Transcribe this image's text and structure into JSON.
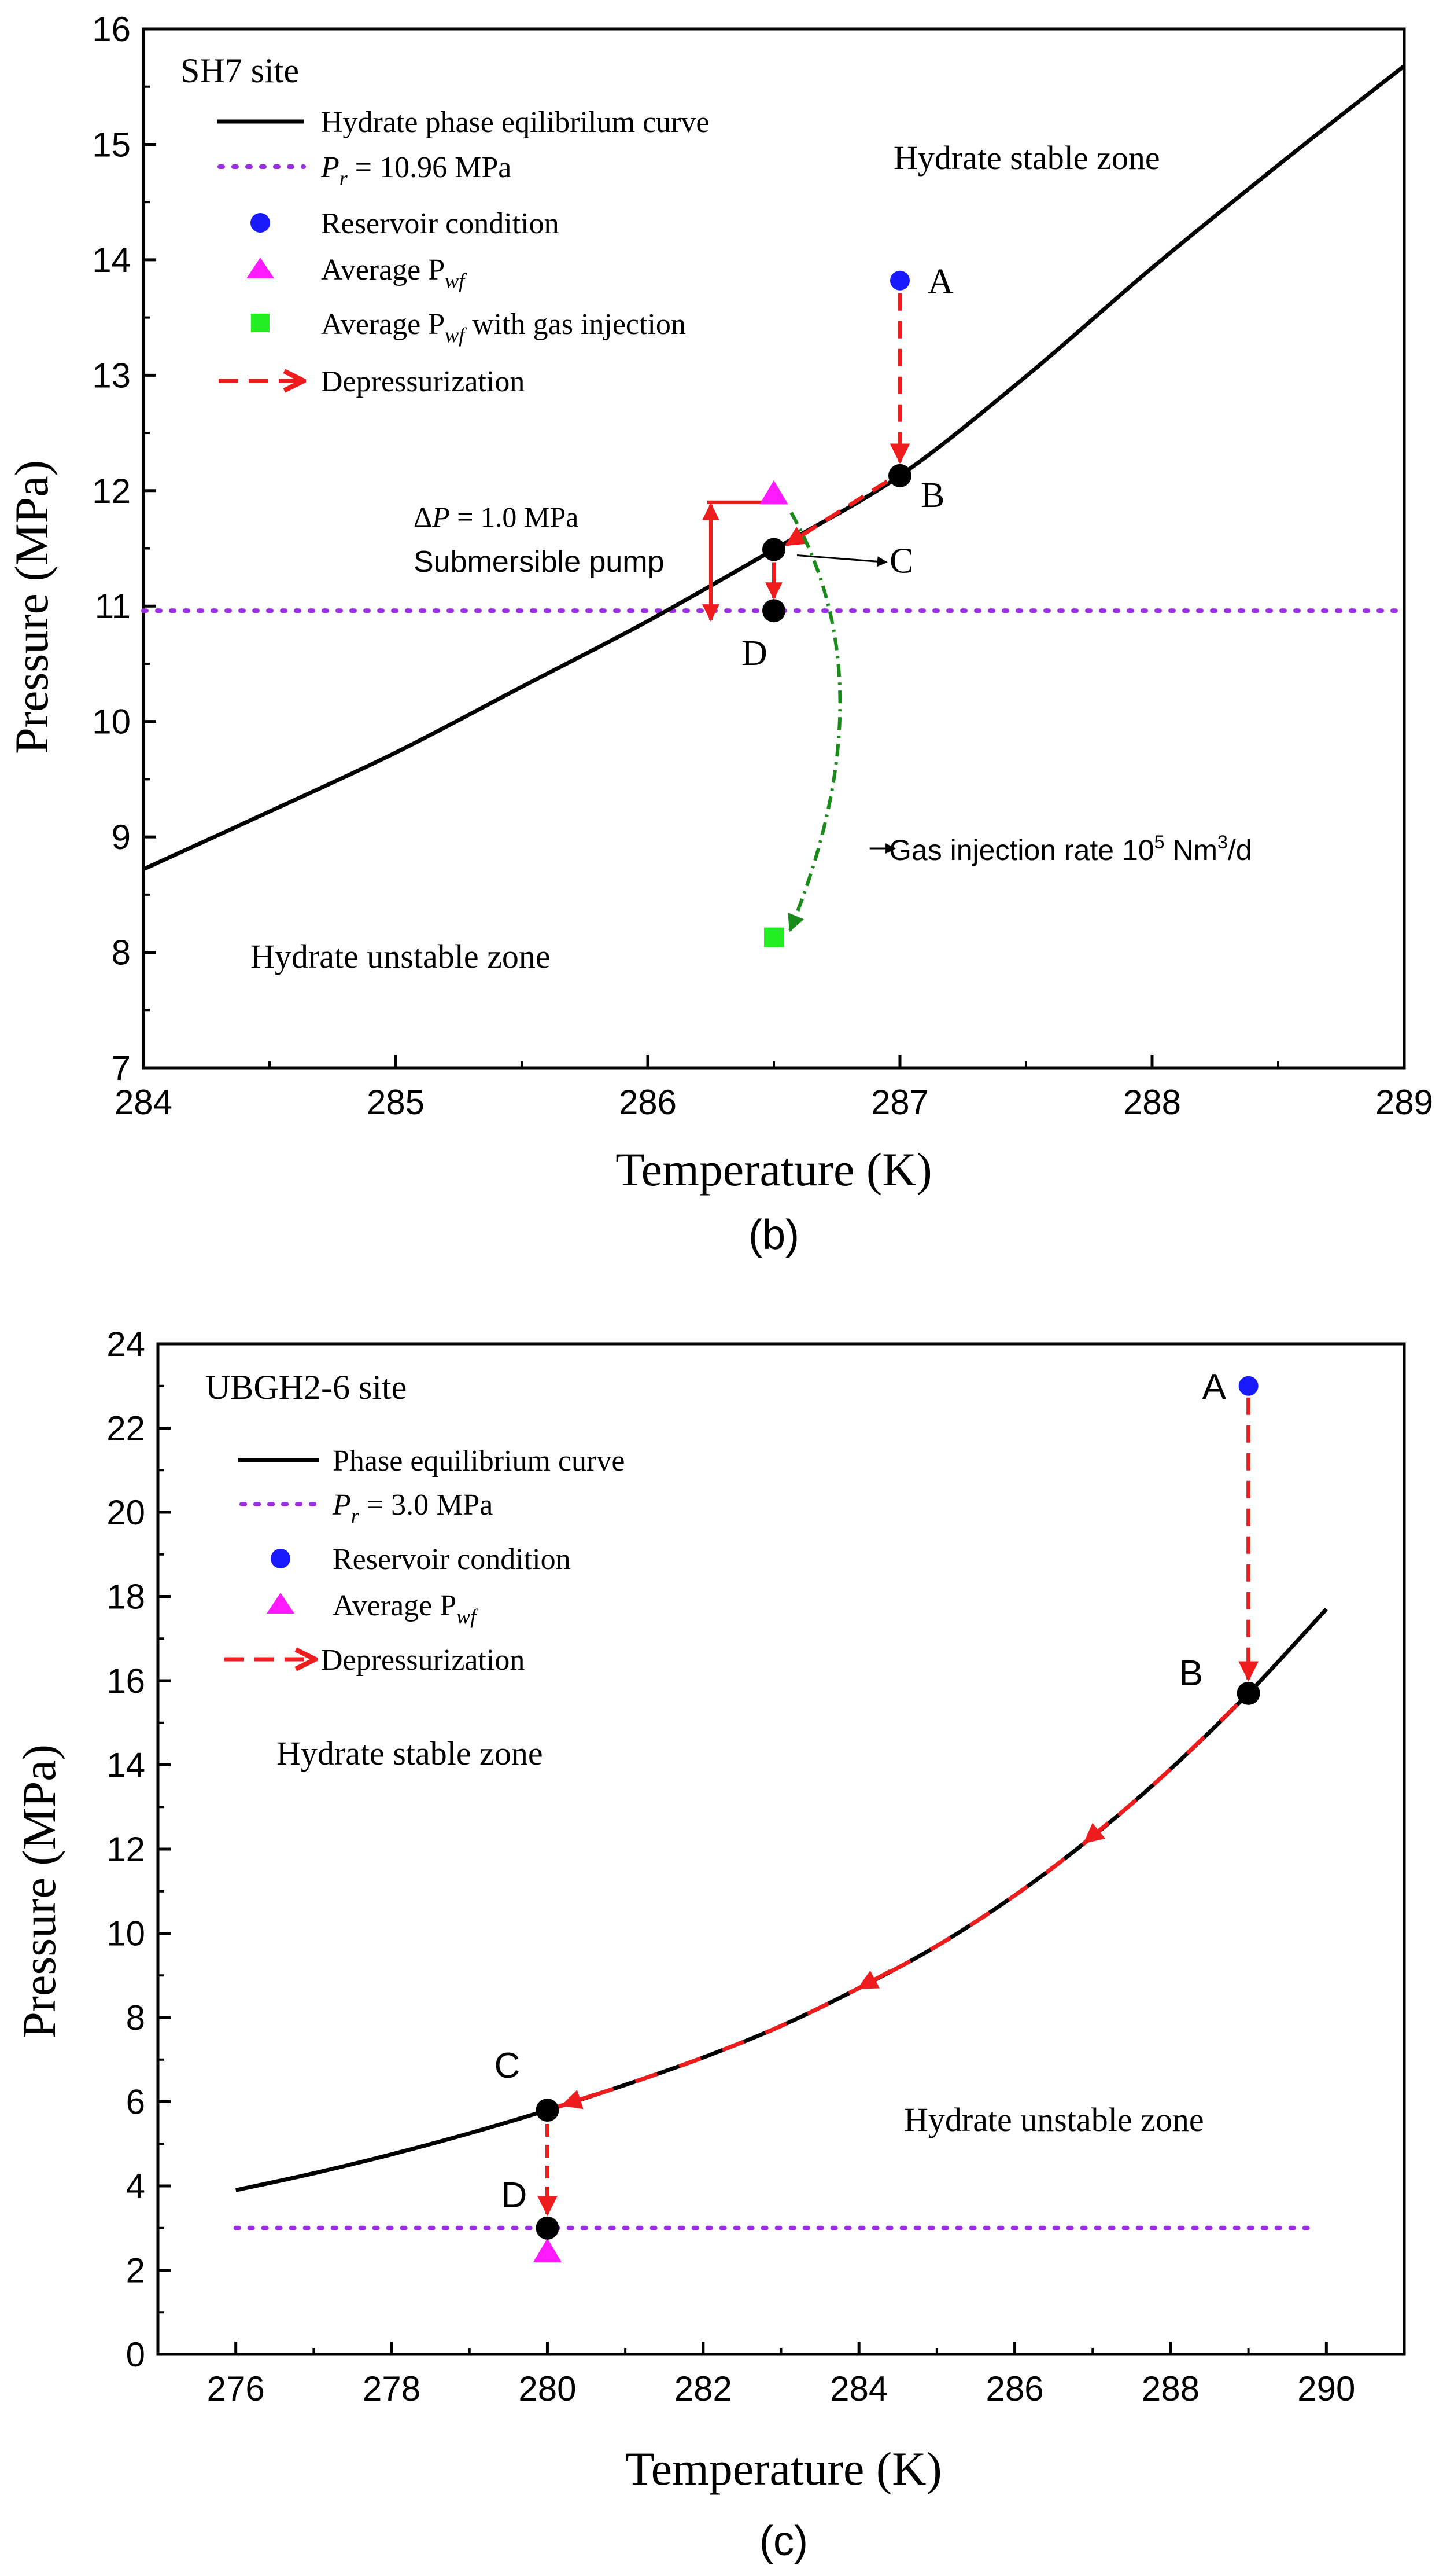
{
  "colors": {
    "axis": "#000000",
    "curve": "#000000",
    "pr_line": "#9a2ee6",
    "reservoir": "#1a1aff",
    "pwf": "#ff1aff",
    "gas_injection": "#22ee22",
    "depressurization": "#ee1c1c",
    "gas_path": "#1a8a1a",
    "state_point": "#000000"
  },
  "chart_data": [
    {
      "type": "line",
      "panel_label": "(b)",
      "site_label": "SH7 site",
      "xlabel": "Temperature (K)",
      "ylabel": "Pressure (MPa)",
      "xlim": [
        284,
        289
      ],
      "ylim": [
        7,
        16
      ],
      "xticks": [
        284,
        285,
        286,
        287,
        288,
        289
      ],
      "yticks": [
        7,
        8,
        9,
        10,
        11,
        12,
        13,
        14,
        15,
        16
      ],
      "grid": false,
      "legend": [
        {
          "key": "curve",
          "label": "Hydrate phase eqilibrilum curve"
        },
        {
          "key": "pr",
          "label_pre": "P",
          "label_sub": "r",
          "label_post": " = 10.96 MPa"
        },
        {
          "key": "reservoir",
          "label": "Reservoir condition"
        },
        {
          "key": "pwf",
          "label_pre": "Average P",
          "label_sub": "wf",
          "label_post": ""
        },
        {
          "key": "gas",
          "label_pre": "Average P",
          "label_sub": "wf",
          "label_post": "  with gas injection"
        },
        {
          "key": "depress",
          "label": "Depressurization"
        }
      ],
      "zones": {
        "stable": "Hydrate stable zone",
        "unstable": "Hydrate unstable zone"
      },
      "equilibrium_curve": {
        "x": [
          284,
          284.5,
          285,
          285.5,
          286,
          286.5,
          287,
          287.5,
          288,
          288.5,
          289
        ],
        "y": [
          8.72,
          9.22,
          9.73,
          10.3,
          10.87,
          11.49,
          12.13,
          12.99,
          13.93,
          14.82,
          15.68
        ]
      },
      "pr_value": 10.96,
      "pr_x_range": [
        284,
        289
      ],
      "points": [
        {
          "name": "A",
          "x": 287.0,
          "y": 13.82,
          "kind": "reservoir"
        },
        {
          "name": "B",
          "x": 287.0,
          "y": 12.13,
          "kind": "state"
        },
        {
          "name": "C",
          "x": 286.5,
          "y": 11.49,
          "kind": "state"
        },
        {
          "name": "D",
          "x": 286.5,
          "y": 10.96,
          "kind": "state"
        }
      ],
      "average_pwf": {
        "x": 286.5,
        "y": 11.96
      },
      "average_pwf_gas_injection": {
        "x": 286.5,
        "y": 8.13
      },
      "annotations": {
        "delta_p_pre": "Δ",
        "delta_p_italic": "P",
        "delta_p_post": " = 1.0 MPa",
        "pump": "Submersible pump",
        "gas_rate_pre": "Gas injection rate 10",
        "gas_rate_sup": "5",
        "gas_rate_mid": " Nm",
        "gas_rate_sup2": "3",
        "gas_rate_post": "/d"
      },
      "delta_p": {
        "x": 286.25,
        "y_top": 11.9,
        "y_bottom": 10.88
      }
    },
    {
      "type": "line",
      "panel_label": "(c)",
      "site_label": "UBGH2-6 site",
      "xlabel": "Temperature (K)",
      "ylabel": "Pressure (MPa)",
      "xlim": [
        275,
        291
      ],
      "ylim": [
        0,
        24
      ],
      "xticks": [
        276,
        278,
        280,
        282,
        284,
        286,
        288,
        290
      ],
      "yticks": [
        0,
        2,
        4,
        6,
        8,
        10,
        12,
        14,
        16,
        18,
        20,
        22,
        24
      ],
      "grid": false,
      "legend": [
        {
          "key": "curve",
          "label": "Phase equilibrium curve"
        },
        {
          "key": "pr",
          "label_pre": "P",
          "label_sub": "r",
          "label_post": " = 3.0 MPa"
        },
        {
          "key": "reservoir",
          "label": "Reservoir condition"
        },
        {
          "key": "pwf",
          "label_pre": "Average P",
          "label_sub": "wf",
          "label_post": ""
        },
        {
          "key": "depress",
          "label": "Depressurization"
        }
      ],
      "zones": {
        "stable": "Hydrate stable zone",
        "unstable": "Hydrate unstable zone"
      },
      "equilibrium_curve": {
        "x": [
          276,
          277,
          278,
          279,
          280,
          281,
          282,
          283,
          284,
          285,
          286,
          287,
          288,
          289,
          290
        ],
        "y": [
          3.9,
          4.3,
          4.75,
          5.25,
          5.8,
          6.4,
          7.05,
          7.8,
          8.7,
          9.7,
          10.9,
          12.3,
          13.9,
          15.7,
          17.7
        ]
      },
      "pr_value": 3.0,
      "pr_x_range": [
        276,
        289.8
      ],
      "points": [
        {
          "name": "A",
          "x": 289,
          "y": 23.0,
          "kind": "reservoir"
        },
        {
          "name": "B",
          "x": 289,
          "y": 15.7,
          "kind": "state"
        },
        {
          "name": "C",
          "x": 280,
          "y": 5.8,
          "kind": "state"
        },
        {
          "name": "D",
          "x": 280,
          "y": 3.0,
          "kind": "state"
        }
      ],
      "average_pwf": {
        "x": 280,
        "y": 2.4
      }
    }
  ]
}
